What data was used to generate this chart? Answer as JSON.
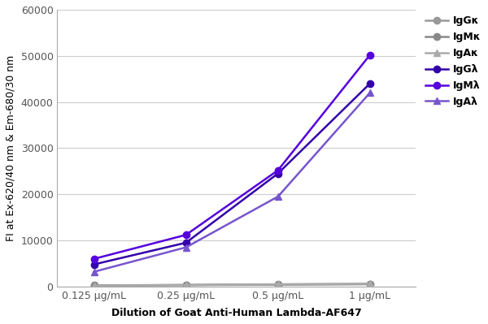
{
  "x_labels": [
    "0.125 μg/mL",
    "0.25 μg/mL",
    "0.5 μg/mL",
    "1 μg/mL"
  ],
  "x_values": [
    1,
    2,
    3,
    4
  ],
  "series": [
    {
      "label": "IgGκ",
      "color": "#999999",
      "marker": "o",
      "values": [
        200,
        300,
        400,
        500
      ]
    },
    {
      "label": "IgMκ",
      "color": "#888888",
      "marker": "o",
      "values": [
        250,
        350,
        450,
        550
      ]
    },
    {
      "label": "IgAκ",
      "color": "#aaaaaa",
      "marker": "^",
      "values": [
        220,
        320,
        500,
        600
      ]
    },
    {
      "label": "IgGλ",
      "color": "#3300aa",
      "marker": "o",
      "values": [
        4800,
        9500,
        24500,
        44000
      ]
    },
    {
      "label": "IgMλ",
      "color": "#5500dd",
      "marker": "o",
      "values": [
        6000,
        11200,
        25200,
        50200
      ]
    },
    {
      "label": "IgAλ",
      "color": "#7755cc",
      "marker": "^",
      "values": [
        3200,
        8500,
        19500,
        42000
      ]
    }
  ],
  "ylabel": "FI at Ex-620/40 nm & Em-680/30 nm",
  "xlabel": "Dilution of Goat Anti-Human Lambda-AF647",
  "ylim": [
    0,
    60000
  ],
  "yticks": [
    0,
    10000,
    20000,
    30000,
    40000,
    50000,
    60000
  ],
  "background_color": "#ffffff",
  "grid_color": "#cccccc",
  "label_fontsize": 9,
  "tick_fontsize": 9,
  "legend_fontsize": 9,
  "linewidth": 1.8,
  "markersize": 6
}
